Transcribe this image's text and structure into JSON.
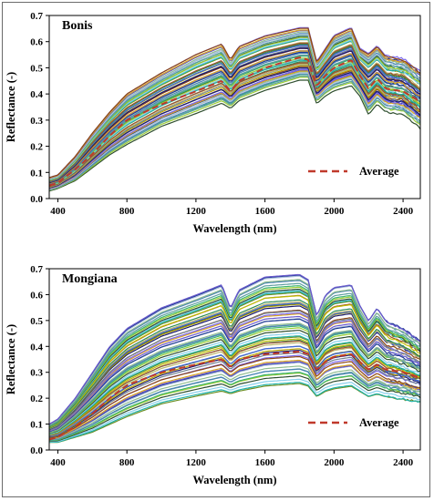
{
  "chart_data": [
    {
      "type": "line",
      "title": "Bonis",
      "xlabel": "Wavelength (nm)",
      "ylabel": "Reflectance (-)",
      "xlim": [
        350,
        2500
      ],
      "ylim": [
        0,
        0.7
      ],
      "xticks": [
        "400",
        "800",
        "1200",
        "1600",
        "2000",
        "2400"
      ],
      "yticks": [
        "0.0",
        "0.1",
        "0.2",
        "0.3",
        "0.4",
        "0.5",
        "0.6",
        "0.7"
      ],
      "legend": {
        "label": "Average",
        "position": "bottom-right",
        "style": "dashed",
        "color": "#c0392b"
      },
      "series_summary": {
        "count": 60,
        "x": [
          350,
          400,
          500,
          600,
          700,
          800,
          1000,
          1200,
          1350,
          1400,
          1450,
          1600,
          1800,
          1850,
          1900,
          1950,
          2000,
          2100,
          2150,
          2200,
          2250,
          2300,
          2400,
          2500
        ],
        "min_envelope": [
          0.03,
          0.04,
          0.07,
          0.12,
          0.17,
          0.21,
          0.28,
          0.33,
          0.37,
          0.35,
          0.38,
          0.42,
          0.46,
          0.46,
          0.37,
          0.4,
          0.42,
          0.44,
          0.4,
          0.33,
          0.37,
          0.34,
          0.33,
          0.28
        ],
        "max_envelope": [
          0.08,
          0.09,
          0.16,
          0.25,
          0.33,
          0.4,
          0.48,
          0.55,
          0.59,
          0.53,
          0.58,
          0.62,
          0.65,
          0.65,
          0.52,
          0.57,
          0.62,
          0.65,
          0.57,
          0.55,
          0.58,
          0.54,
          0.53,
          0.48
        ],
        "average": [
          0.05,
          0.06,
          0.11,
          0.17,
          0.24,
          0.3,
          0.36,
          0.41,
          0.45,
          0.41,
          0.45,
          0.5,
          0.54,
          0.53,
          0.43,
          0.47,
          0.5,
          0.53,
          0.47,
          0.42,
          0.46,
          0.42,
          0.41,
          0.37
        ]
      }
    },
    {
      "type": "line",
      "title": "Mongiana",
      "xlabel": "Wavelength (nm)",
      "ylabel": "Reflectance (-)",
      "xlim": [
        350,
        2500
      ],
      "ylim": [
        0,
        0.7
      ],
      "xticks": [
        "400",
        "800",
        "1200",
        "1600",
        "2000",
        "2400"
      ],
      "yticks": [
        "0.0",
        "0.1",
        "0.2",
        "0.3",
        "0.4",
        "0.5",
        "0.6",
        "0.7"
      ],
      "legend": {
        "label": "Average",
        "position": "bottom-right",
        "style": "dashed",
        "color": "#c0392b"
      },
      "series_summary": {
        "count": 60,
        "x": [
          350,
          400,
          500,
          600,
          700,
          800,
          1000,
          1200,
          1350,
          1400,
          1450,
          1600,
          1800,
          1850,
          1900,
          1950,
          2000,
          2100,
          2150,
          2200,
          2250,
          2300,
          2400,
          2500
        ],
        "min_envelope": [
          0.03,
          0.03,
          0.05,
          0.07,
          0.1,
          0.13,
          0.18,
          0.21,
          0.23,
          0.22,
          0.23,
          0.25,
          0.26,
          0.25,
          0.21,
          0.23,
          0.24,
          0.25,
          0.23,
          0.21,
          0.22,
          0.21,
          0.2,
          0.19
        ],
        "max_envelope": [
          0.1,
          0.12,
          0.2,
          0.3,
          0.4,
          0.47,
          0.55,
          0.6,
          0.64,
          0.55,
          0.62,
          0.67,
          0.68,
          0.66,
          0.52,
          0.6,
          0.63,
          0.64,
          0.56,
          0.5,
          0.55,
          0.5,
          0.47,
          0.42
        ],
        "average": [
          0.04,
          0.05,
          0.09,
          0.14,
          0.2,
          0.25,
          0.3,
          0.33,
          0.35,
          0.32,
          0.35,
          0.37,
          0.38,
          0.37,
          0.31,
          0.34,
          0.36,
          0.37,
          0.34,
          0.31,
          0.33,
          0.31,
          0.3,
          0.28
        ]
      }
    }
  ],
  "palette": [
    "#2f4f2f",
    "#1f3a93",
    "#b8a400",
    "#6b8e23",
    "#4682b4",
    "#8b4513",
    "#2e8b57",
    "#9acd32",
    "#6a5acd",
    "#556b2f",
    "#20b2aa",
    "#8fbc8f",
    "#708090",
    "#a0522d",
    "#3cb371",
    "#daa520",
    "#4169e1",
    "#87ceeb",
    "#b0c4de",
    "#191970",
    "#c0c000",
    "#5f9ea0",
    "#7b68ee",
    "#bdb76b"
  ]
}
